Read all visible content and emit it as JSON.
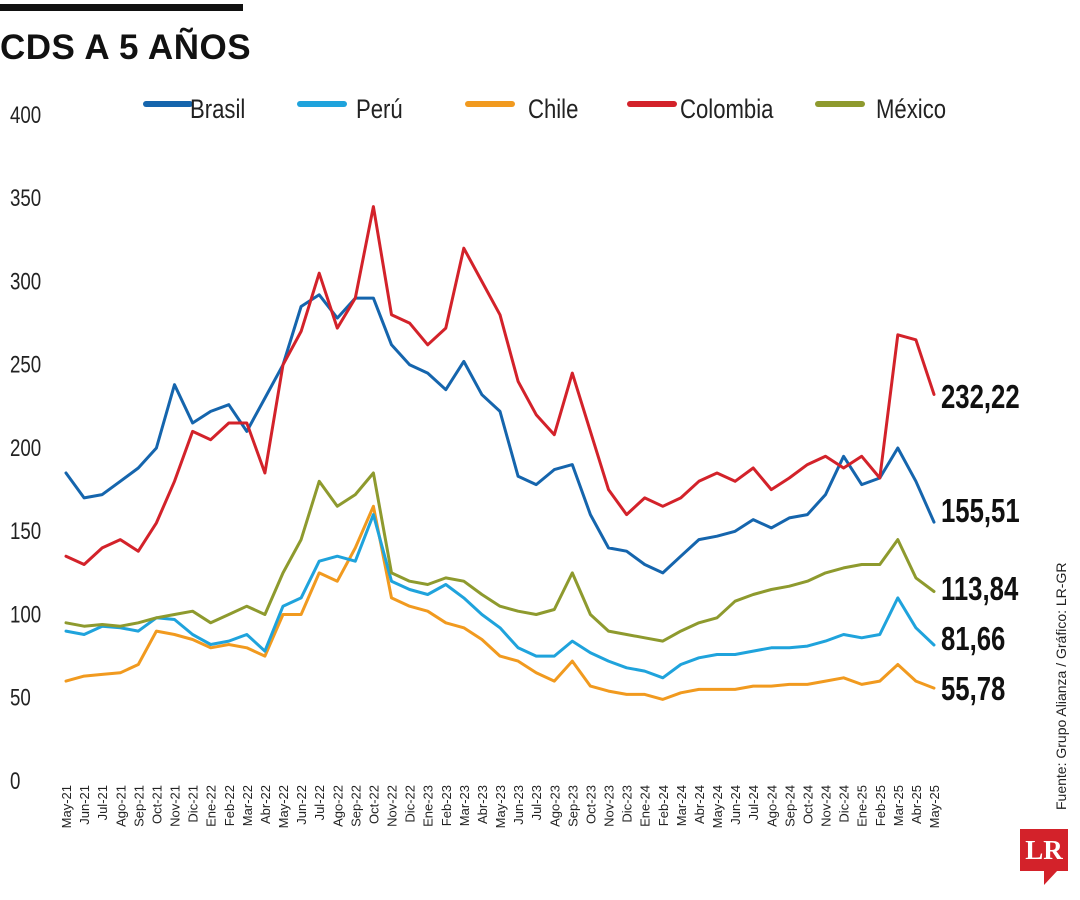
{
  "title": "CDS A 5 AÑOS",
  "credit": "Fuente: Grupo Alianza / Gráfico: LR-GR",
  "logo_text": "LR",
  "chart_data": {
    "type": "line",
    "ylim": [
      0,
      400
    ],
    "yticks": [
      0,
      50,
      100,
      150,
      200,
      250,
      300,
      350,
      400
    ],
    "x": [
      "May-21",
      "Jun-21",
      "Jul-21",
      "Ago-21",
      "Sep-21",
      "Oct-21",
      "Nov-21",
      "Dic-21",
      "Ene-22",
      "Feb-22",
      "Mar-22",
      "Abr-22",
      "May-22",
      "Jun-22",
      "Jul-22",
      "Ago-22",
      "Sep-22",
      "Oct-22",
      "Nov-22",
      "Dic-22",
      "Ene-23",
      "Feb-23",
      "Mar-23",
      "Abr-23",
      "May-23",
      "Jun-23",
      "Jul-23",
      "Ago-23",
      "Sep-23",
      "Oct-23",
      "Nov-23",
      "Dic-23",
      "Ene-24",
      "Feb-24",
      "Mar-24",
      "Abr-24",
      "May-24",
      "Jun-24",
      "Jul-24",
      "Ago-24",
      "Sep-24",
      "Oct-24",
      "Nov-24",
      "Dic-24",
      "Ene-25",
      "Feb-25",
      "Mar-25",
      "Abr-25",
      "May-25"
    ],
    "legend_position": "top",
    "grid": false,
    "series": [
      {
        "name": "Brasil",
        "color": "#1565ad",
        "end_label": "155,51",
        "values": [
          185,
          170,
          172,
          180,
          188,
          200,
          238,
          215,
          222,
          226,
          210,
          230,
          250,
          285,
          292,
          278,
          290,
          290,
          262,
          250,
          245,
          235,
          252,
          232,
          222,
          183,
          178,
          187,
          190,
          160,
          140,
          138,
          130,
          125,
          135,
          145,
          147,
          150,
          157,
          152,
          158,
          160,
          172,
          195,
          178,
          182,
          200,
          180,
          155.51
        ]
      },
      {
        "name": "Perú",
        "color": "#1fa3dc",
        "end_label": "81,66",
        "values": [
          90,
          88,
          93,
          92,
          90,
          98,
          97,
          88,
          82,
          84,
          88,
          78,
          105,
          110,
          132,
          135,
          132,
          160,
          120,
          115,
          112,
          118,
          110,
          100,
          92,
          80,
          75,
          75,
          84,
          77,
          72,
          68,
          66,
          62,
          70,
          74,
          76,
          76,
          78,
          80,
          80,
          81,
          84,
          88,
          86,
          88,
          110,
          92,
          81.66
        ]
      },
      {
        "name": "Chile",
        "color": "#f19a1f",
        "end_label": "55,78",
        "values": [
          60,
          63,
          64,
          65,
          70,
          90,
          88,
          85,
          80,
          82,
          80,
          75,
          100,
          100,
          125,
          120,
          140,
          165,
          110,
          105,
          102,
          95,
          92,
          85,
          75,
          72,
          65,
          60,
          72,
          57,
          54,
          52,
          52,
          49,
          53,
          55,
          55,
          55,
          57,
          57,
          58,
          58,
          60,
          62,
          58,
          60,
          70,
          60,
          55.78
        ]
      },
      {
        "name": "Colombia",
        "color": "#d3222a",
        "end_label": "232,22",
        "values": [
          135,
          130,
          140,
          145,
          138,
          155,
          180,
          210,
          205,
          215,
          215,
          185,
          250,
          270,
          305,
          272,
          290,
          345,
          280,
          275,
          262,
          272,
          320,
          300,
          280,
          240,
          220,
          208,
          245,
          210,
          175,
          160,
          170,
          165,
          170,
          180,
          185,
          180,
          188,
          175,
          182,
          190,
          195,
          188,
          195,
          182,
          268,
          265,
          232.22
        ]
      },
      {
        "name": "México",
        "color": "#8e9a2e",
        "end_label": "113,84",
        "values": [
          95,
          93,
          94,
          93,
          95,
          98,
          100,
          102,
          95,
          100,
          105,
          100,
          125,
          145,
          180,
          165,
          172,
          185,
          125,
          120,
          118,
          122,
          120,
          112,
          105,
          102,
          100,
          103,
          125,
          100,
          90,
          88,
          86,
          84,
          90,
          95,
          98,
          108,
          112,
          115,
          117,
          120,
          125,
          128,
          130,
          130,
          145,
          122,
          113.84
        ]
      }
    ]
  }
}
